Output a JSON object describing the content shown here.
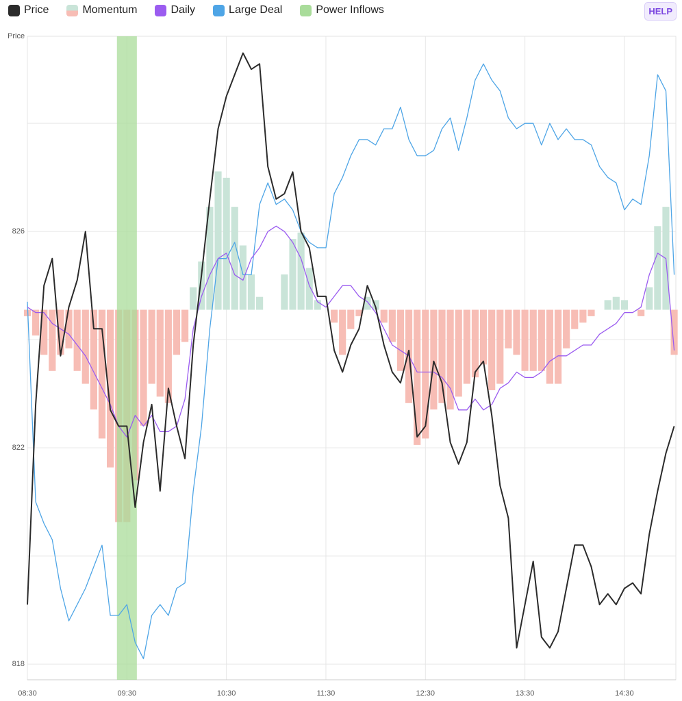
{
  "chart_data": {
    "type": "combo",
    "ylabel": "Price",
    "xlim": [
      510,
      901
    ],
    "xticks": [
      {
        "value": 510,
        "label": "08:30"
      },
      {
        "value": 570,
        "label": "09:30"
      },
      {
        "value": 630,
        "label": "10:30"
      },
      {
        "value": 690,
        "label": "11:30"
      },
      {
        "value": 750,
        "label": "12:30"
      },
      {
        "value": 810,
        "label": "13:30"
      },
      {
        "value": 870,
        "label": "14:30"
      }
    ],
    "ylim": [
      817.71,
      829.61
    ],
    "yticks": [
      818,
      822,
      826
    ],
    "yminor": [
      820,
      824,
      828
    ],
    "y2lim": [
      -115,
      85
    ],
    "grid": true,
    "x": [
      510,
      515,
      520,
      525,
      530,
      535,
      540,
      545,
      550,
      555,
      560,
      565,
      570,
      575,
      580,
      585,
      590,
      595,
      600,
      605,
      610,
      615,
      620,
      625,
      630,
      635,
      640,
      645,
      650,
      655,
      660,
      665,
      670,
      675,
      680,
      685,
      690,
      695,
      700,
      705,
      710,
      715,
      720,
      725,
      730,
      735,
      740,
      745,
      750,
      755,
      760,
      765,
      770,
      775,
      780,
      785,
      790,
      795,
      800,
      805,
      810,
      815,
      820,
      825,
      830,
      835,
      840,
      845,
      850,
      855,
      860,
      865,
      870,
      875,
      880,
      885,
      890,
      895,
      900
    ],
    "series": [
      {
        "name": "Price",
        "type": "line",
        "color": "#2b2b2b",
        "width": 2,
        "values": [
          819.1,
          822.8,
          825.0,
          825.5,
          823.7,
          824.6,
          825.1,
          826.0,
          824.2,
          824.2,
          822.7,
          822.4,
          822.4,
          820.9,
          822.1,
          822.8,
          821.2,
          823.1,
          822.4,
          821.8,
          823.9,
          825.2,
          826.6,
          827.9,
          828.5,
          828.9,
          829.3,
          829.0,
          829.1,
          827.2,
          826.6,
          826.7,
          827.1,
          826.0,
          825.7,
          824.8,
          824.8,
          823.8,
          823.4,
          823.9,
          824.2,
          825.0,
          824.6,
          823.9,
          823.4,
          823.2,
          823.8,
          822.2,
          822.4,
          823.6,
          823.2,
          822.1,
          821.7,
          822.1,
          823.4,
          823.6,
          822.6,
          821.3,
          820.7,
          818.3,
          819.1,
          819.9,
          818.5,
          818.3,
          818.6,
          819.4,
          820.2,
          820.2,
          819.8,
          819.1,
          819.3,
          819.1,
          819.4,
          819.5,
          819.3,
          820.4,
          821.2,
          821.9,
          822.4
        ]
      },
      {
        "name": "Momentum",
        "type": "bar",
        "axis": "y2",
        "positive_color": "#c9e4d8",
        "negative_color": "#f7bdb5",
        "values": [
          -2,
          -8,
          -14,
          -19,
          -14,
          -12,
          -19,
          -23,
          -31,
          -40,
          -49,
          -66,
          -66,
          -53,
          -36,
          -23,
          -27,
          -29,
          -14,
          -10,
          7,
          15,
          32,
          43,
          41,
          32,
          20,
          11,
          4,
          0,
          0,
          11,
          22,
          24,
          13,
          3,
          0,
          -4,
          -14,
          -6,
          -2,
          4,
          3,
          -4,
          -10,
          -19,
          -29,
          -42,
          -40,
          -31,
          -29,
          -31,
          -27,
          -23,
          -21,
          -17,
          -25,
          -23,
          -12,
          -14,
          -19,
          -19,
          -19,
          -23,
          -23,
          -12,
          -6,
          -4,
          -2,
          0,
          3,
          4,
          3,
          0,
          -2,
          7,
          26,
          32,
          -14
        ]
      },
      {
        "name": "Daily",
        "type": "line",
        "color": "#9b5cf0",
        "width": 1.3,
        "values": [
          824.6,
          824.5,
          824.5,
          824.3,
          824.2,
          824.1,
          823.9,
          823.7,
          823.4,
          823.1,
          822.8,
          822.4,
          822.2,
          822.6,
          822.4,
          822.6,
          822.3,
          822.3,
          822.4,
          822.9,
          824.2,
          824.8,
          825.2,
          825.5,
          825.6,
          825.2,
          825.1,
          825.5,
          825.7,
          826.0,
          826.1,
          826.0,
          825.8,
          825.5,
          825.0,
          824.7,
          824.6,
          824.8,
          825.0,
          825.0,
          824.8,
          824.7,
          824.5,
          824.2,
          823.9,
          823.8,
          823.7,
          823.4,
          823.4,
          823.4,
          823.3,
          823.1,
          822.7,
          822.7,
          822.9,
          822.7,
          822.8,
          823.1,
          823.2,
          823.4,
          823.3,
          823.3,
          823.4,
          823.6,
          823.7,
          823.7,
          823.8,
          823.9,
          823.9,
          824.1,
          824.2,
          824.3,
          824.5,
          824.5,
          824.6,
          825.2,
          825.6,
          825.5,
          823.8
        ]
      },
      {
        "name": "Large Deal",
        "type": "line",
        "color": "#4ea5e6",
        "width": 1.3,
        "values": [
          824.7,
          821.0,
          820.6,
          820.3,
          819.4,
          818.8,
          819.1,
          819.4,
          819.8,
          820.2,
          818.9,
          818.9,
          819.1,
          818.4,
          818.1,
          818.9,
          819.1,
          818.9,
          819.4,
          819.5,
          821.2,
          822.4,
          824.2,
          825.5,
          825.5,
          825.8,
          825.2,
          825.2,
          826.5,
          826.9,
          826.5,
          826.6,
          826.4,
          826.0,
          825.8,
          825.7,
          825.7,
          826.7,
          827.0,
          827.4,
          827.7,
          827.7,
          827.6,
          827.9,
          827.9,
          828.3,
          827.7,
          827.4,
          827.4,
          827.5,
          827.9,
          828.1,
          827.5,
          828.1,
          828.8,
          829.1,
          828.8,
          828.6,
          828.1,
          827.9,
          828.0,
          828.0,
          827.6,
          828.0,
          827.7,
          827.9,
          827.7,
          827.7,
          827.6,
          827.2,
          827.0,
          826.9,
          826.4,
          826.6,
          826.5,
          827.4,
          828.9,
          828.6,
          825.2
        ]
      }
    ],
    "bands": [
      {
        "name": "Power Inflows",
        "color": "#a9dc9a",
        "start": 564,
        "end": 576
      }
    ]
  },
  "controls": {
    "help": "HELP"
  }
}
